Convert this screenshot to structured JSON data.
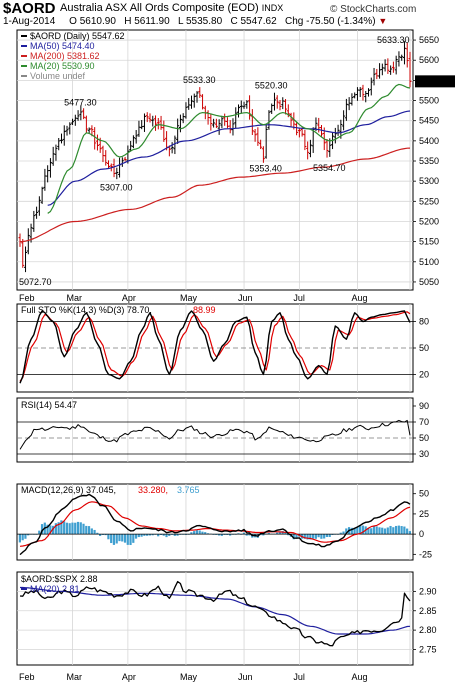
{
  "header": {
    "symbol": "$AORD",
    "title": "Australia ASX All Ords Composite (EOD)",
    "exchange": "INDX",
    "copyright": "© StockCharts.com",
    "date": "1-Aug-2014",
    "open_label": "O",
    "open": "5610.90",
    "high_label": "H",
    "high": "5611.90",
    "low_label": "L",
    "low": "5535.80",
    "close_label": "C",
    "close": "5547.62",
    "chg_label": "Chg",
    "chg": "-75.50 (-1.34%)",
    "chg_arrow": "▼"
  },
  "colors": {
    "price": "#000000",
    "up_bar": "#000000",
    "down_bar": "#cc0000",
    "ma50": "#1f1f9e",
    "ma200": "#cc1f1f",
    "ma20": "#2e8b2e",
    "sto_k": "#000000",
    "sto_d": "#e00000",
    "rsi": "#000000",
    "macd": "#000000",
    "signal": "#e00000",
    "hist": "#3f9fd0",
    "ratio": "#000000",
    "ratio_ma": "#1f1f9e",
    "grid": "#d6d6d6"
  },
  "chart_data": [
    {
      "type": "line",
      "title": "$AORD (Daily) 5547.62",
      "subtype": "ohlc-bars",
      "x_labels": [
        "Feb",
        "Mar",
        "Apr",
        "May",
        "Jun",
        "Jul",
        "Aug"
      ],
      "ylim": [
        5030,
        5675
      ],
      "y_ticks": [
        5050,
        5100,
        5150,
        5200,
        5250,
        5300,
        5350,
        5400,
        5450,
        5500,
        5550,
        5600,
        5650
      ],
      "legend": [
        {
          "label": "$AORD (Daily) 5547.62",
          "color": "#000000"
        },
        {
          "label": "MA(50) 5474.40",
          "color": "#1f1f9e"
        },
        {
          "label": "MA(200) 5381.62",
          "color": "#cc1f1f"
        },
        {
          "label": "MA(20) 5530.90",
          "color": "#2e8b2e"
        },
        {
          "label": "Volume undef",
          "color": "#888888"
        }
      ],
      "annotations": [
        {
          "text": "5072.70",
          "x": 1,
          "y": 5072.7
        },
        {
          "text": "5477.30",
          "x": 21,
          "y": 5477.3
        },
        {
          "text": "5307.00",
          "x": 34,
          "y": 5307.0
        },
        {
          "text": "5533.30",
          "x": 64,
          "y": 5533.3
        },
        {
          "text": "5520.30",
          "x": 90,
          "y": 5520.3
        },
        {
          "text": "5353.40",
          "x": 88,
          "y": 5353.4
        },
        {
          "text": "5354.70",
          "x": 111,
          "y": 5354.7
        },
        {
          "text": "5633.30",
          "x": 139,
          "y": 5633.3
        }
      ],
      "close_anchors": [
        [
          0,
          5150
        ],
        [
          1,
          5090
        ],
        [
          3,
          5170
        ],
        [
          6,
          5230
        ],
        [
          10,
          5330
        ],
        [
          14,
          5400
        ],
        [
          18,
          5440
        ],
        [
          21,
          5470
        ],
        [
          25,
          5430
        ],
        [
          28,
          5390
        ],
        [
          31,
          5350
        ],
        [
          34,
          5320
        ],
        [
          38,
          5360
        ],
        [
          42,
          5420
        ],
        [
          46,
          5460
        ],
        [
          50,
          5440
        ],
        [
          54,
          5380
        ],
        [
          58,
          5450
        ],
        [
          62,
          5500
        ],
        [
          64,
          5520
        ],
        [
          67,
          5470
        ],
        [
          70,
          5440
        ],
        [
          73,
          5450
        ],
        [
          76,
          5420
        ],
        [
          79,
          5480
        ],
        [
          82,
          5500
        ],
        [
          84,
          5430
        ],
        [
          87,
          5380
        ],
        [
          88,
          5360
        ],
        [
          90,
          5480
        ],
        [
          92,
          5500
        ],
        [
          95,
          5490
        ],
        [
          98,
          5450
        ],
        [
          101,
          5420
        ],
        [
          104,
          5380
        ],
        [
          107,
          5440
        ],
        [
          110,
          5400
        ],
        [
          111,
          5370
        ],
        [
          113,
          5420
        ],
        [
          116,
          5440
        ],
        [
          119,
          5500
        ],
        [
          122,
          5530
        ],
        [
          125,
          5520
        ],
        [
          128,
          5560
        ],
        [
          131,
          5590
        ],
        [
          134,
          5580
        ],
        [
          137,
          5610
        ],
        [
          139,
          5625
        ],
        [
          140,
          5600
        ],
        [
          141,
          5548
        ]
      ],
      "ma50_anchors": [
        [
          10,
          5240
        ],
        [
          20,
          5300
        ],
        [
          30,
          5330
        ],
        [
          45,
          5360
        ],
        [
          60,
          5400
        ],
        [
          75,
          5430
        ],
        [
          90,
          5440
        ],
        [
          105,
          5430
        ],
        [
          115,
          5420
        ],
        [
          125,
          5440
        ],
        [
          133,
          5460
        ],
        [
          141,
          5474
        ]
      ],
      "ma200_anchors": [
        [
          0,
          5150
        ],
        [
          20,
          5200
        ],
        [
          40,
          5230
        ],
        [
          55,
          5260
        ],
        [
          65,
          5290
        ],
        [
          80,
          5310
        ],
        [
          95,
          5320
        ],
        [
          110,
          5335
        ],
        [
          125,
          5355
        ],
        [
          141,
          5382
        ]
      ],
      "ma20_anchors": [
        [
          10,
          5220
        ],
        [
          18,
          5330
        ],
        [
          24,
          5420
        ],
        [
          30,
          5400
        ],
        [
          36,
          5360
        ],
        [
          42,
          5380
        ],
        [
          50,
          5440
        ],
        [
          58,
          5430
        ],
        [
          66,
          5470
        ],
        [
          74,
          5460
        ],
        [
          82,
          5470
        ],
        [
          88,
          5440
        ],
        [
          95,
          5470
        ],
        [
          104,
          5430
        ],
        [
          112,
          5400
        ],
        [
          119,
          5420
        ],
        [
          126,
          5480
        ],
        [
          132,
          5510
        ],
        [
          137,
          5540
        ],
        [
          141,
          5531
        ]
      ]
    },
    {
      "type": "line",
      "title": "Full STO %K(14,3) %D(3) 78.70, 88.99",
      "series": [
        {
          "name": "%K(14,3)",
          "color": "#000000"
        },
        {
          "name": "%D(3)",
          "color": "#e00000"
        }
      ],
      "ylim": [
        0,
        100
      ],
      "y_ticks": [
        20,
        50,
        80
      ],
      "k_anchors": [
        [
          0,
          10
        ],
        [
          4,
          60
        ],
        [
          8,
          92
        ],
        [
          12,
          80
        ],
        [
          16,
          40
        ],
        [
          20,
          70
        ],
        [
          24,
          90
        ],
        [
          28,
          55
        ],
        [
          32,
          20
        ],
        [
          36,
          15
        ],
        [
          40,
          35
        ],
        [
          44,
          70
        ],
        [
          47,
          90
        ],
        [
          50,
          60
        ],
        [
          54,
          20
        ],
        [
          58,
          70
        ],
        [
          62,
          92
        ],
        [
          66,
          70
        ],
        [
          70,
          35
        ],
        [
          74,
          55
        ],
        [
          78,
          80
        ],
        [
          82,
          85
        ],
        [
          85,
          45
        ],
        [
          88,
          20
        ],
        [
          91,
          80
        ],
        [
          94,
          90
        ],
        [
          97,
          60
        ],
        [
          100,
          40
        ],
        [
          104,
          15
        ],
        [
          108,
          30
        ],
        [
          111,
          20
        ],
        [
          114,
          75
        ],
        [
          118,
          60
        ],
        [
          121,
          90
        ],
        [
          124,
          80
        ],
        [
          127,
          85
        ],
        [
          131,
          88
        ],
        [
          135,
          90
        ],
        [
          139,
          92
        ],
        [
          141,
          79
        ]
      ],
      "d_anchors": [
        [
          0,
          12
        ],
        [
          5,
          55
        ],
        [
          9,
          88
        ],
        [
          13,
          78
        ],
        [
          17,
          45
        ],
        [
          21,
          68
        ],
        [
          25,
          85
        ],
        [
          29,
          58
        ],
        [
          33,
          25
        ],
        [
          37,
          18
        ],
        [
          41,
          35
        ],
        [
          45,
          68
        ],
        [
          48,
          86
        ],
        [
          51,
          62
        ],
        [
          55,
          25
        ],
        [
          59,
          65
        ],
        [
          63,
          88
        ],
        [
          67,
          72
        ],
        [
          71,
          40
        ],
        [
          75,
          55
        ],
        [
          79,
          78
        ],
        [
          83,
          82
        ],
        [
          86,
          50
        ],
        [
          89,
          25
        ],
        [
          92,
          75
        ],
        [
          95,
          86
        ],
        [
          98,
          62
        ],
        [
          101,
          42
        ],
        [
          105,
          20
        ],
        [
          109,
          30
        ],
        [
          112,
          25
        ],
        [
          115,
          70
        ],
        [
          119,
          65
        ],
        [
          122,
          85
        ],
        [
          125,
          82
        ],
        [
          128,
          84
        ],
        [
          132,
          86
        ],
        [
          136,
          88
        ],
        [
          140,
          91
        ],
        [
          141,
          89
        ]
      ]
    },
    {
      "type": "line",
      "title": "RSI(14) 54.47",
      "series": [
        {
          "name": "RSI(14)",
          "color": "#000000"
        }
      ],
      "ylim": [
        20,
        100
      ],
      "y_ticks": [
        30,
        50,
        70,
        90
      ],
      "anchors": [
        [
          0,
          35
        ],
        [
          3,
          52
        ],
        [
          6,
          62
        ],
        [
          10,
          60
        ],
        [
          14,
          64
        ],
        [
          18,
          62
        ],
        [
          22,
          66
        ],
        [
          26,
          56
        ],
        [
          30,
          50
        ],
        [
          34,
          46
        ],
        [
          38,
          54
        ],
        [
          42,
          58
        ],
        [
          46,
          62
        ],
        [
          50,
          58
        ],
        [
          54,
          50
        ],
        [
          58,
          60
        ],
        [
          62,
          63
        ],
        [
          66,
          56
        ],
        [
          70,
          52
        ],
        [
          74,
          56
        ],
        [
          78,
          60
        ],
        [
          82,
          58
        ],
        [
          86,
          48
        ],
        [
          90,
          62
        ],
        [
          94,
          58
        ],
        [
          98,
          52
        ],
        [
          102,
          50
        ],
        [
          106,
          46
        ],
        [
          110,
          50
        ],
        [
          114,
          54
        ],
        [
          118,
          60
        ],
        [
          122,
          64
        ],
        [
          126,
          62
        ],
        [
          130,
          66
        ],
        [
          134,
          68
        ],
        [
          138,
          71
        ],
        [
          140,
          70
        ],
        [
          141,
          54
        ]
      ]
    },
    {
      "type": "line",
      "title": "MACD(12,26,9) 37.045, 33.280, 3.765",
      "series": [
        {
          "name": "MACD(12,26,9)",
          "color": "#000000"
        },
        {
          "name": "Signal",
          "color": "#e00000"
        },
        {
          "name": "Histogram",
          "color": "#3f9fd0"
        }
      ],
      "ylim": [
        -32,
        62
      ],
      "y_ticks": [
        -25,
        0,
        25,
        50
      ],
      "macd_anchors": [
        [
          0,
          -25
        ],
        [
          5,
          -10
        ],
        [
          10,
          10
        ],
        [
          15,
          30
        ],
        [
          20,
          45
        ],
        [
          25,
          48
        ],
        [
          30,
          35
        ],
        [
          35,
          15
        ],
        [
          40,
          5
        ],
        [
          45,
          8
        ],
        [
          50,
          5
        ],
        [
          55,
          2
        ],
        [
          60,
          5
        ],
        [
          65,
          10
        ],
        [
          70,
          6
        ],
        [
          75,
          3
        ],
        [
          80,
          5
        ],
        [
          85,
          -2
        ],
        [
          90,
          4
        ],
        [
          95,
          6
        ],
        [
          100,
          -5
        ],
        [
          105,
          -12
        ],
        [
          110,
          -15
        ],
        [
          115,
          -8
        ],
        [
          120,
          5
        ],
        [
          125,
          15
        ],
        [
          130,
          22
        ],
        [
          135,
          30
        ],
        [
          139,
          40
        ],
        [
          141,
          37
        ]
      ],
      "signal_anchors": [
        [
          0,
          -15
        ],
        [
          8,
          -8
        ],
        [
          14,
          12
        ],
        [
          20,
          30
        ],
        [
          26,
          40
        ],
        [
          32,
          35
        ],
        [
          38,
          20
        ],
        [
          44,
          10
        ],
        [
          50,
          7
        ],
        [
          56,
          4
        ],
        [
          62,
          5
        ],
        [
          68,
          7
        ],
        [
          74,
          5
        ],
        [
          80,
          4
        ],
        [
          86,
          2
        ],
        [
          92,
          3
        ],
        [
          98,
          2
        ],
        [
          104,
          -5
        ],
        [
          110,
          -10
        ],
        [
          116,
          -8
        ],
        [
          122,
          0
        ],
        [
          128,
          10
        ],
        [
          134,
          20
        ],
        [
          141,
          33
        ]
      ]
    },
    {
      "type": "line",
      "title": "$AORD:$SPX 2.88",
      "series": [
        {
          "name": "$AORD:$SPX",
          "color": "#000000"
        },
        {
          "name": "MA(20) 2.81",
          "color": "#1f1f9e"
        }
      ],
      "ylim": [
        2.71,
        2.95
      ],
      "y_ticks": [
        2.75,
        2.8,
        2.85,
        2.9
      ],
      "ratio_anchors": [
        [
          0,
          2.89
        ],
        [
          5,
          2.9
        ],
        [
          10,
          2.88
        ],
        [
          15,
          2.9
        ],
        [
          20,
          2.89
        ],
        [
          25,
          2.91
        ],
        [
          30,
          2.9
        ],
        [
          35,
          2.89
        ],
        [
          40,
          2.9
        ],
        [
          45,
          2.89
        ],
        [
          50,
          2.91
        ],
        [
          54,
          2.88
        ],
        [
          57,
          2.92
        ],
        [
          60,
          2.9
        ],
        [
          65,
          2.89
        ],
        [
          70,
          2.88
        ],
        [
          75,
          2.9
        ],
        [
          80,
          2.88
        ],
        [
          85,
          2.86
        ],
        [
          90,
          2.84
        ],
        [
          95,
          2.82
        ],
        [
          100,
          2.8
        ],
        [
          104,
          2.78
        ],
        [
          108,
          2.77
        ],
        [
          112,
          2.76
        ],
        [
          116,
          2.78
        ],
        [
          120,
          2.79
        ],
        [
          125,
          2.8
        ],
        [
          130,
          2.8
        ],
        [
          135,
          2.82
        ],
        [
          138,
          2.83
        ],
        [
          139,
          2.9
        ],
        [
          141,
          2.88
        ]
      ],
      "ratio_ma_anchors": [
        [
          0,
          2.91
        ],
        [
          15,
          2.9
        ],
        [
          30,
          2.89
        ],
        [
          45,
          2.895
        ],
        [
          60,
          2.89
        ],
        [
          75,
          2.88
        ],
        [
          85,
          2.86
        ],
        [
          95,
          2.84
        ],
        [
          105,
          2.81
        ],
        [
          115,
          2.79
        ],
        [
          125,
          2.79
        ],
        [
          135,
          2.8
        ],
        [
          141,
          2.81
        ]
      ]
    }
  ]
}
